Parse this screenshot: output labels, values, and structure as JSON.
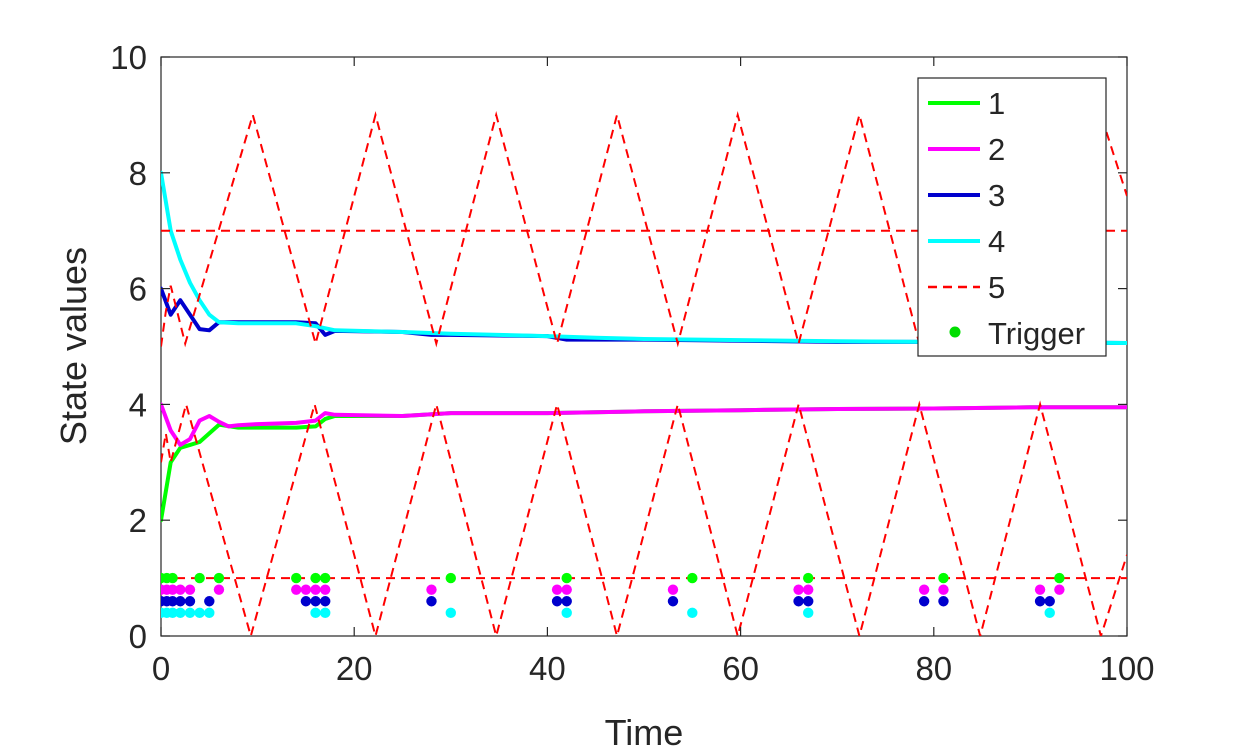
{
  "chart_data": {
    "type": "line",
    "title": "",
    "xlabel": "Time",
    "ylabel": "State values",
    "xlim": [
      0,
      100
    ],
    "ylim": [
      0,
      10
    ],
    "xticks": [
      "0",
      "20",
      "40",
      "60",
      "80",
      "100"
    ],
    "yticks": [
      "0",
      "2",
      "4",
      "6",
      "8",
      "10"
    ],
    "grid": false,
    "legend_position": "top-right",
    "series": [
      {
        "name": "1",
        "color": "#00ff00",
        "style": "solid",
        "points": [
          [
            0,
            2.0
          ],
          [
            1,
            3.0
          ],
          [
            2,
            3.25
          ],
          [
            3,
            3.3
          ],
          [
            4,
            3.35
          ],
          [
            5,
            3.5
          ],
          [
            6,
            3.65
          ],
          [
            8,
            3.6
          ],
          [
            10,
            3.6
          ],
          [
            14,
            3.6
          ],
          [
            16,
            3.62
          ],
          [
            17,
            3.75
          ],
          [
            18,
            3.8
          ],
          [
            25,
            3.8
          ],
          [
            30,
            3.85
          ],
          [
            40,
            3.85
          ],
          [
            50,
            3.88
          ],
          [
            60,
            3.9
          ],
          [
            70,
            3.92
          ],
          [
            80,
            3.93
          ],
          [
            90,
            3.95
          ],
          [
            100,
            3.95
          ]
        ]
      },
      {
        "name": "2",
        "color": "#ff00ff",
        "style": "solid",
        "points": [
          [
            0,
            4.0
          ],
          [
            1,
            3.55
          ],
          [
            2,
            3.3
          ],
          [
            3,
            3.4
          ],
          [
            4,
            3.72
          ],
          [
            5,
            3.8
          ],
          [
            6,
            3.7
          ],
          [
            7,
            3.62
          ],
          [
            8,
            3.64
          ],
          [
            10,
            3.66
          ],
          [
            14,
            3.68
          ],
          [
            16,
            3.72
          ],
          [
            17,
            3.85
          ],
          [
            18,
            3.82
          ],
          [
            25,
            3.8
          ],
          [
            30,
            3.85
          ],
          [
            40,
            3.85
          ],
          [
            50,
            3.88
          ],
          [
            60,
            3.9
          ],
          [
            70,
            3.92
          ],
          [
            80,
            3.93
          ],
          [
            90,
            3.95
          ],
          [
            100,
            3.95
          ]
        ]
      },
      {
        "name": "3",
        "color": "#0000cd",
        "style": "solid",
        "points": [
          [
            0,
            6.0
          ],
          [
            1,
            5.55
          ],
          [
            2,
            5.8
          ],
          [
            3,
            5.55
          ],
          [
            4,
            5.3
          ],
          [
            5,
            5.28
          ],
          [
            6,
            5.42
          ],
          [
            8,
            5.42
          ],
          [
            10,
            5.42
          ],
          [
            14,
            5.42
          ],
          [
            16,
            5.4
          ],
          [
            17,
            5.2
          ],
          [
            18,
            5.27
          ],
          [
            25,
            5.25
          ],
          [
            28,
            5.2
          ],
          [
            30,
            5.2
          ],
          [
            40,
            5.18
          ],
          [
            42,
            5.12
          ],
          [
            50,
            5.12
          ],
          [
            60,
            5.1
          ],
          [
            70,
            5.08
          ],
          [
            80,
            5.08
          ],
          [
            90,
            5.07
          ],
          [
            100,
            5.06
          ]
        ]
      },
      {
        "name": "4",
        "color": "#00ffff",
        "style": "solid",
        "points": [
          [
            0,
            8.0
          ],
          [
            1,
            7.0
          ],
          [
            2,
            6.5
          ],
          [
            3,
            6.1
          ],
          [
            4,
            5.8
          ],
          [
            5,
            5.55
          ],
          [
            6,
            5.42
          ],
          [
            8,
            5.4
          ],
          [
            10,
            5.4
          ],
          [
            14,
            5.4
          ],
          [
            16,
            5.35
          ],
          [
            18,
            5.28
          ],
          [
            25,
            5.25
          ],
          [
            30,
            5.22
          ],
          [
            40,
            5.18
          ],
          [
            45,
            5.15
          ],
          [
            50,
            5.13
          ],
          [
            60,
            5.11
          ],
          [
            70,
            5.09
          ],
          [
            80,
            5.08
          ],
          [
            90,
            5.07
          ],
          [
            100,
            5.06
          ]
        ]
      },
      {
        "name": "5",
        "color": "#ff0000",
        "style": "dashed",
        "hlines": [
          7,
          1
        ],
        "upper_band": [
          [
            0,
            5.0
          ],
          [
            0.5,
            5.6
          ],
          [
            1,
            6.05
          ],
          [
            2.5,
            5.05
          ],
          [
            9.5,
            9.0
          ],
          [
            16,
            5.05
          ],
          [
            22.2,
            9.0
          ],
          [
            28.5,
            5.05
          ],
          [
            34.7,
            9.0
          ],
          [
            41,
            5.05
          ],
          [
            47.2,
            9.0
          ],
          [
            53.5,
            5.05
          ],
          [
            59.7,
            9.0
          ],
          [
            66,
            5.05
          ],
          [
            72.3,
            9.0
          ],
          [
            78.5,
            5.05
          ],
          [
            84.8,
            9.0
          ],
          [
            91,
            5.05
          ],
          [
            97.3,
            9.0
          ],
          [
            100,
            7.6
          ]
        ],
        "lower_band": [
          [
            0,
            3.0
          ],
          [
            0.5,
            3.5
          ],
          [
            1,
            3.0
          ],
          [
            2.6,
            4.0
          ],
          [
            9.3,
            0.0
          ],
          [
            15.9,
            4.0
          ],
          [
            22.2,
            0.0
          ],
          [
            28.5,
            4.0
          ],
          [
            34.7,
            0.0
          ],
          [
            41,
            4.0
          ],
          [
            47.2,
            0.0
          ],
          [
            53.5,
            4.0
          ],
          [
            59.7,
            0.0
          ],
          [
            66,
            4.0
          ],
          [
            72.3,
            0.0
          ],
          [
            78.5,
            4.0
          ],
          [
            84.8,
            0.0
          ],
          [
            91,
            4.0
          ],
          [
            97.3,
            0.0
          ],
          [
            100,
            1.4
          ]
        ]
      },
      {
        "name": "Trigger",
        "color": "#00dd00",
        "style": "markers",
        "trigger_groups": [
          {
            "color": "#00ff00",
            "y": 1.0,
            "x": [
              0,
              0.6,
              1.2,
              4,
              6,
              14,
              16,
              17,
              30,
              42,
              55,
              67,
              81,
              93
            ]
          },
          {
            "color": "#ff00ff",
            "y": 0.8,
            "x": [
              0,
              0.6,
              1.2,
              2,
              3,
              6,
              14,
              15,
              16,
              17,
              28,
              41,
              42,
              53,
              66,
              67,
              79,
              81,
              91,
              93
            ]
          },
          {
            "color": "#0000cd",
            "y": 0.6,
            "x": [
              0,
              0.6,
              1.2,
              2,
              3,
              5,
              15,
              16,
              17,
              28,
              41,
              42,
              53,
              66,
              67,
              79,
              81,
              91,
              92
            ]
          },
          {
            "color": "#00ffff",
            "y": 0.4,
            "x": [
              0,
              0.6,
              1.2,
              2,
              3,
              4,
              5,
              16,
              17,
              30,
              42,
              55,
              67,
              92
            ]
          }
        ]
      }
    ]
  }
}
